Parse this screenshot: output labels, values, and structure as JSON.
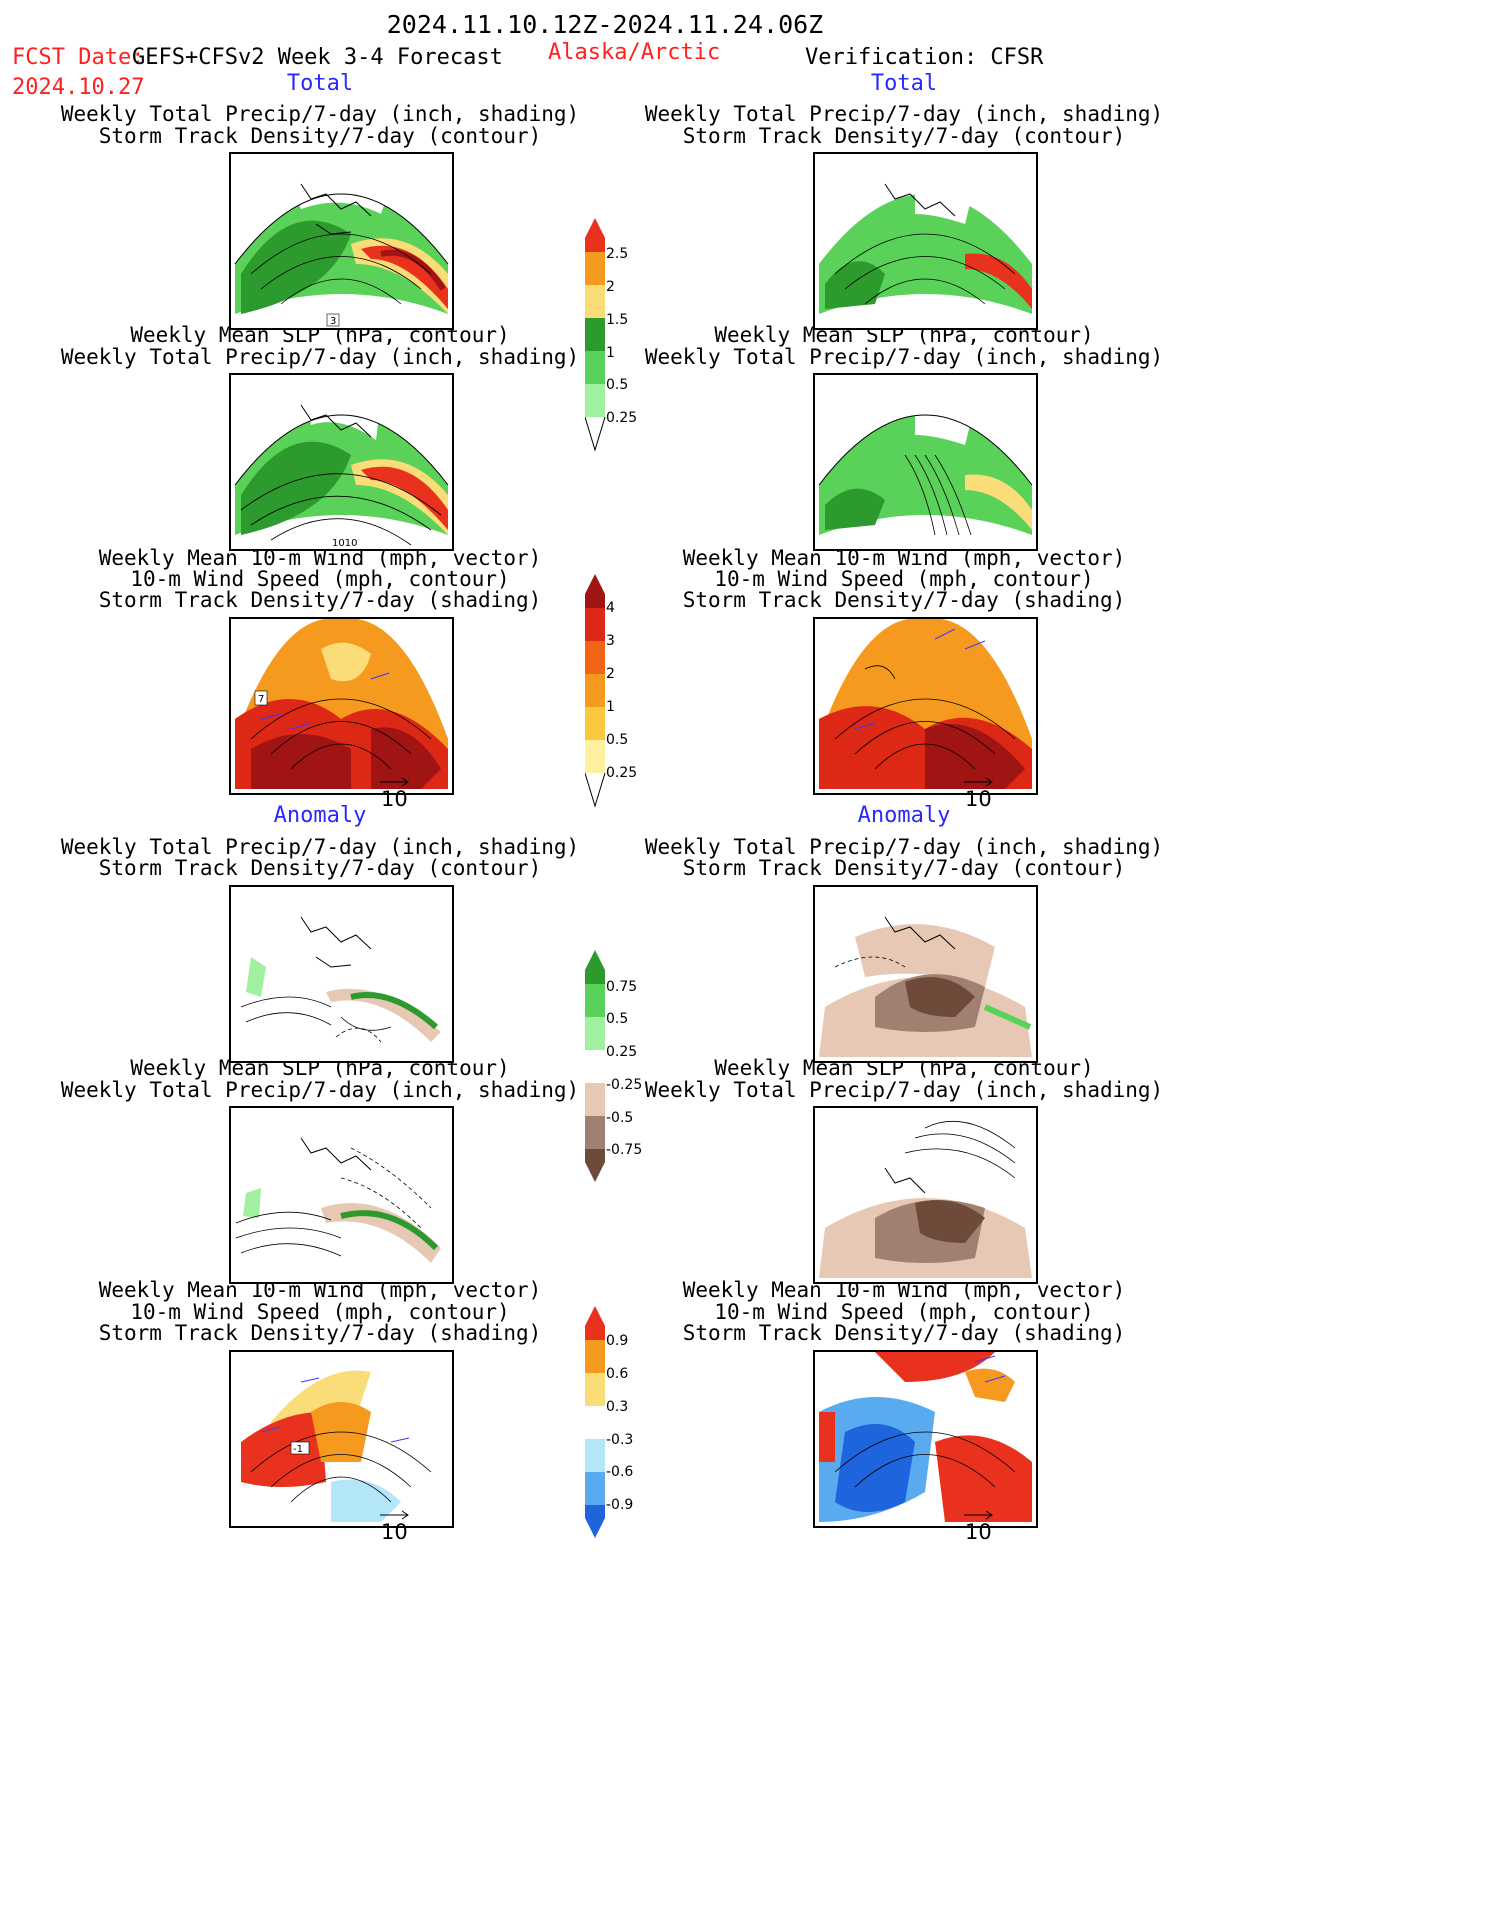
{
  "header": {
    "period": "2024.11.10.12Z-2024.11.24.06Z",
    "fcst_label": "FCST Date:",
    "fcst_date": "2024.10.27",
    "model": "GEFS+CFSv2 Week 3-4 Forecast",
    "region": "Alaska/Arctic",
    "verification": "Verification: CFSR"
  },
  "sections": {
    "total": "Total",
    "anomaly": "Anomaly"
  },
  "titles": {
    "precip_storm": [
      "Weekly Total Precip/7-day (inch, shading)",
      "Storm Track Density/7-day (contour)"
    ],
    "slp_precip": [
      "Weekly Mean SLP (hPa, contour)",
      "Weekly Total Precip/7-day (inch, shading)"
    ],
    "wind": [
      "Weekly Mean 10-m Wind (mph, vector)",
      "10-m Wind Speed (mph, contour)",
      "Storm Track Density/7-day (shading)"
    ]
  },
  "panel_labels": {
    "fc_total_precip_storm": "3",
    "fc_total_slp": "1010",
    "fc_total_wind": "7",
    "fc_anom_wind": "-1"
  },
  "ref_vector": "10",
  "colorbars": [
    {
      "name": "total-precip",
      "labels": [
        "2.5",
        "2",
        "1.5",
        "1",
        "0.5",
        "0.25"
      ],
      "colors": [
        "#e8321e",
        "#f59a1e",
        "#fadc78",
        "#2d9a2d",
        "#5ad25a",
        "#a0f0a0"
      ]
    },
    {
      "name": "total-storm",
      "labels": [
        "4",
        "3",
        "2",
        "1",
        "0.5",
        "0.25"
      ],
      "colors": [
        "#a01414",
        "#dc2814",
        "#f06414",
        "#f59a1e",
        "#fac83c",
        "#fff0a0"
      ]
    },
    {
      "name": "anom-precip",
      "labels": [
        "0.75",
        "0.5",
        "0.25",
        "-0.25",
        "-0.5",
        "-0.75"
      ],
      "colors": [
        "#2d9a2d",
        "#5ad25a",
        "#a0f0a0",
        "#ffffff",
        "#e6c8b4",
        "#a08070",
        "#6e4a3a"
      ]
    },
    {
      "name": "anom-storm",
      "labels": [
        "0.9",
        "0.6",
        "0.3",
        "-0.3",
        "-0.6",
        "-0.9"
      ],
      "colors": [
        "#e8321e",
        "#f59a1e",
        "#fadc78",
        "#ffffff",
        "#b4e6fa",
        "#5aaaf0",
        "#1e64dc"
      ]
    }
  ],
  "colors": {
    "red_text": "#ff2020",
    "blue_text": "#2a2aff"
  }
}
